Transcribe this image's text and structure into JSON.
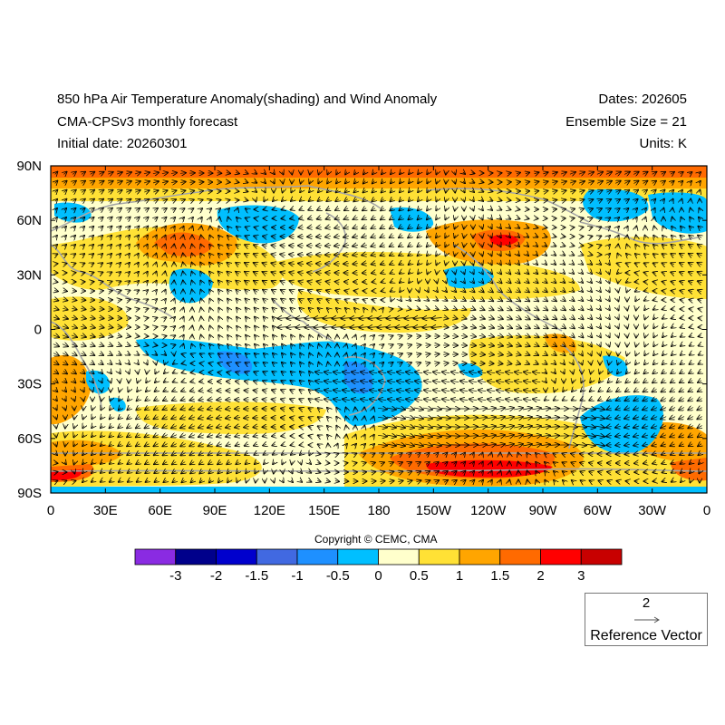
{
  "header": {
    "title": "850 hPa Air Temperature Anomaly(shading) and Wind Anomaly",
    "model": "CMA-CPSv3 monthly forecast",
    "initial_date": "Initial date: 20260301",
    "dates": "Dates: 202605",
    "ensemble": "Ensemble Size = 21",
    "units": "Units: K"
  },
  "axes": {
    "lat_labels": [
      "90N",
      "60N",
      "30N",
      "0",
      "30S",
      "60S",
      "90S"
    ],
    "lon_labels": [
      "0",
      "30E",
      "60E",
      "90E",
      "120E",
      "150E",
      "180",
      "150W",
      "120W",
      "90W",
      "60W",
      "30W",
      "0"
    ]
  },
  "colors": {
    "neutral": "#ffffcc",
    "land_outline": "#a6a6a6",
    "arrow": "#000000"
  },
  "colorbar": {
    "levels": [
      "-3",
      "-2",
      "-1.5",
      "-1",
      "-0.5",
      "0",
      "0.5",
      "1",
      "1.5",
      "2",
      "3"
    ],
    "colors": [
      "#8a2be2",
      "#00008b",
      "#0000cd",
      "#4169e1",
      "#1e90ff",
      "#00bfff",
      "#ffffcc",
      "#ffe135",
      "#ffa500",
      "#ff6a00",
      "#ff0000",
      "#c80000"
    ]
  },
  "copyright": "Copyright © CEMC, CMA",
  "reference_vector": {
    "magnitude": "2",
    "label": "Reference Vector"
  }
}
